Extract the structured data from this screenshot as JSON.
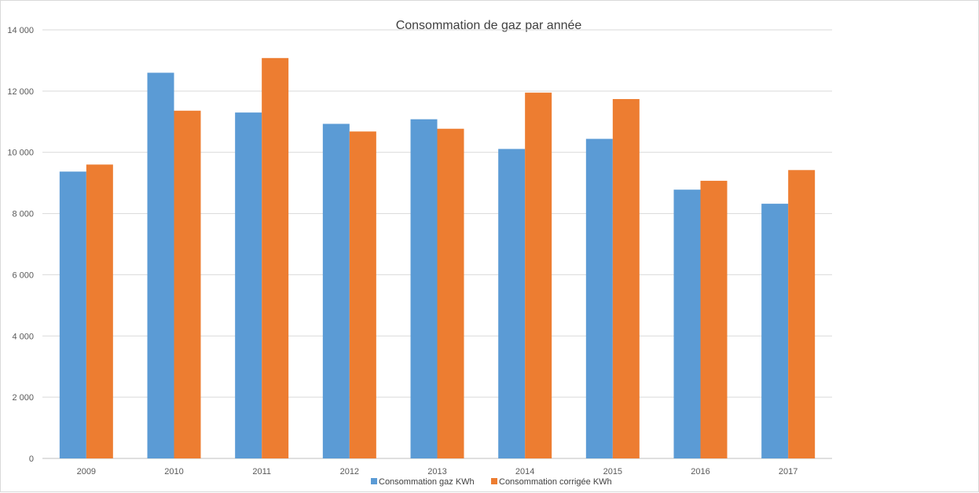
{
  "chart_data": {
    "type": "bar",
    "title": "Consommation de gaz par année",
    "categories": [
      "2009",
      "2010",
      "2011",
      "2012",
      "2013",
      "2014",
      "2015",
      "2016",
      "2017"
    ],
    "series": [
      {
        "name": "Consommation gaz KWh",
        "color": "#5b9bd5",
        "values": [
          9370,
          12600,
          11300,
          10930,
          11080,
          10110,
          10440,
          8780,
          8320
        ]
      },
      {
        "name": "Consommation corrigée KWh",
        "color": "#ed7d31",
        "values": [
          9600,
          11360,
          13080,
          10680,
          10770,
          11950,
          11740,
          9070,
          9420
        ]
      }
    ],
    "ylim": [
      0,
      14000
    ],
    "y_ticks": [
      0,
      2000,
      4000,
      6000,
      8000,
      10000,
      12000,
      14000
    ],
    "y_tick_labels": [
      "0",
      "2 000",
      "4 000",
      "6 000",
      "8 000",
      "10 000",
      "12 000",
      "14 000"
    ],
    "xlabel": "",
    "ylabel": "",
    "grid": true,
    "legend_position": "bottom"
  }
}
